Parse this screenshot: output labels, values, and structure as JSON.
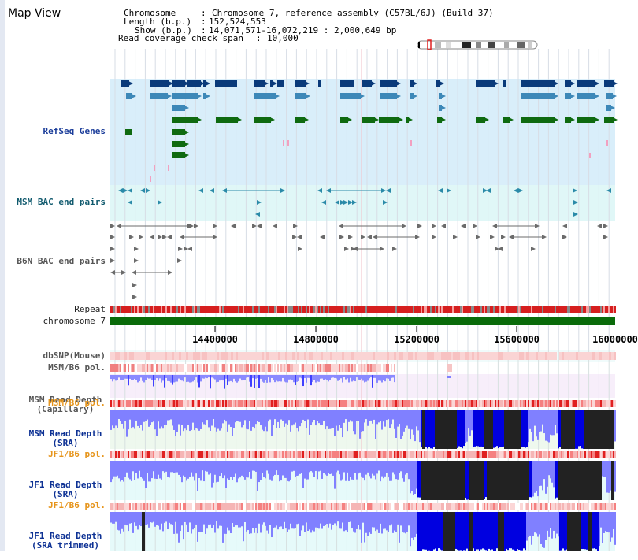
{
  "header": {
    "title": "Map View",
    "chromosome_label": "Chromosome",
    "chromosome_value": "Chromosome 7, reference assembly (C57BL/6J) (Build 37)",
    "length_label": "Length (b.p.)",
    "length_value": "152,524,553",
    "show_label": "Show (b.p.)",
    "show_value": "14,071,571-16,072,219 : 2,000,649 bp",
    "coverage_label": "Read coverage check span",
    "coverage_value": "10,000"
  },
  "tracks": {
    "refseq": "RefSeq Genes",
    "msm_bac": "MSM BAC end pairs",
    "b6n_bac": "B6N BAC end pairs",
    "repeat": "Repeat",
    "chromosome": "chromosome 7",
    "dbsnp": "dbSNP(Mouse)",
    "msm_b6_pol": "MSM/B6 pol.",
    "msm_depth_cap_1": "MSM Read Depth",
    "msm_depth_cap_2": "(Capillary)",
    "msm_b6_pol_2": "MSM/B6 pol.",
    "msm_depth_sra_1": "MSM Read Depth",
    "msm_depth_sra_2": "(SRA)",
    "jf1_b6_pol": "JF1/B6 pol.",
    "jf1_depth_sra_1": "JF1 Read Depth",
    "jf1_depth_sra_2": "(SRA)",
    "jf1_b6_pol_2": "JF1/B6 pol.",
    "jf1_depth_trim_1": "JF1 Read Depth",
    "jf1_depth_trim_2": "(SRA trimmed)"
  },
  "axis": {
    "ticks": [
      "14400000",
      "14800000",
      "15200000",
      "15600000",
      "16000000"
    ]
  },
  "colors": {
    "refseq_bg": "#d9eefa",
    "bac_bg": "#e0f7f7",
    "repeat": "#d61f1f",
    "chromosome": "#0a6b0a",
    "depth_bar": "#8080ff",
    "depth_high": "#0000e0",
    "depth_black": "#222222",
    "pol_pink": "#f5b5b5",
    "pol_red": "#e02020",
    "gene_navy": "#0a3a7a",
    "gene_steel": "#3d88b8",
    "gene_green": "#0f6a10"
  }
}
